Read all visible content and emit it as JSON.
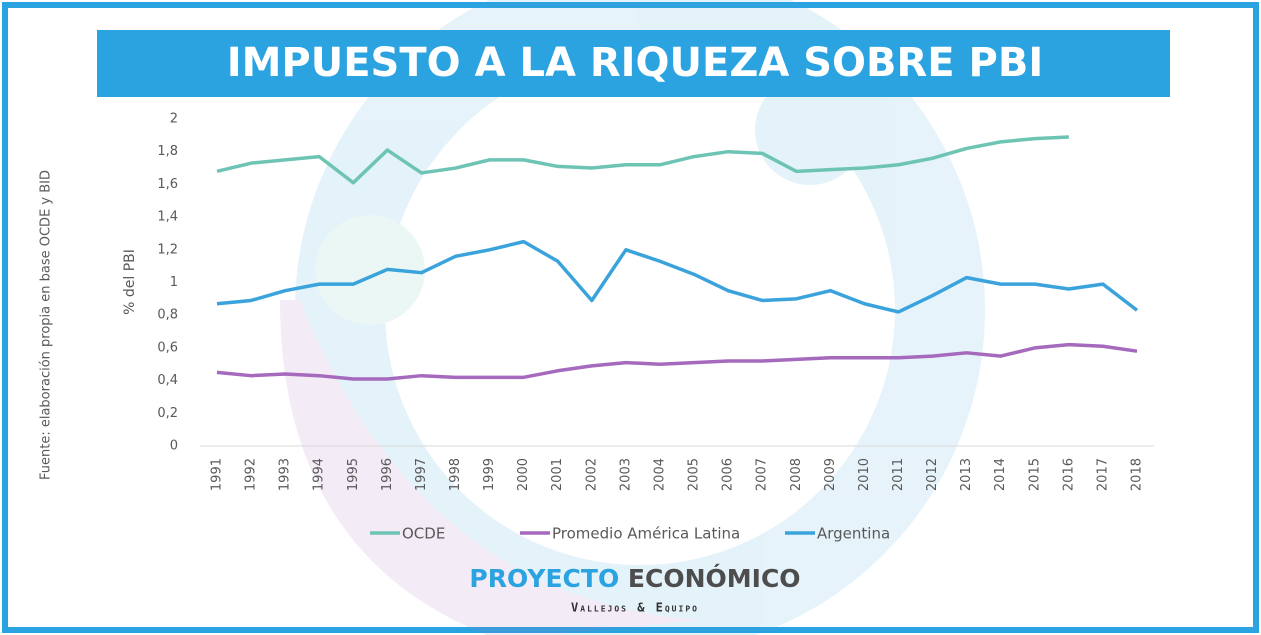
{
  "chart_data": {
    "type": "line",
    "title": "IMPUESTO A LA RIQUEZA SOBRE PBI",
    "y_label": "% del PBI",
    "source": "Fuente: elaboración propia en base  OCDE y BID",
    "categories": [
      "1991",
      "1992",
      "1993",
      "1994",
      "1995",
      "1996",
      "1997",
      "1998",
      "1999",
      "2000",
      "2001",
      "2002",
      "2003",
      "2004",
      "2005",
      "2006",
      "2007",
      "2008",
      "2009",
      "2010",
      "2011",
      "2012",
      "2013",
      "2014",
      "2015",
      "2016",
      "2017",
      "2018"
    ],
    "series": [
      {
        "name": "OCDE",
        "color": "#6ec4b4",
        "values": [
          1.68,
          1.73,
          1.75,
          1.77,
          1.61,
          1.81,
          1.67,
          1.7,
          1.75,
          1.75,
          1.71,
          1.7,
          1.72,
          1.72,
          1.77,
          1.8,
          1.79,
          1.68,
          1.69,
          1.7,
          1.72,
          1.76,
          1.82,
          1.86,
          1.88,
          1.89,
          null,
          null
        ]
      },
      {
        "name": "Promedio América Latina",
        "color": "#a569bd",
        "values": [
          0.45,
          0.43,
          0.44,
          0.43,
          0.41,
          0.41,
          0.43,
          0.42,
          0.42,
          0.42,
          0.46,
          0.49,
          0.51,
          0.5,
          0.51,
          0.52,
          0.52,
          0.53,
          0.54,
          0.54,
          0.54,
          0.55,
          0.57,
          0.55,
          0.6,
          0.62,
          0.61,
          0.58
        ]
      },
      {
        "name": "Argentina",
        "color": "#3aa3dc",
        "values": [
          0.87,
          0.89,
          0.95,
          0.99,
          0.99,
          1.08,
          1.06,
          1.16,
          1.2,
          1.25,
          1.13,
          0.89,
          1.2,
          1.13,
          1.05,
          0.95,
          0.89,
          0.9,
          0.95,
          0.87,
          0.82,
          0.92,
          1.03,
          0.99,
          0.99,
          0.96,
          0.99,
          0.83
        ]
      }
    ],
    "ylim": [
      0,
      2
    ],
    "yticks": [
      0,
      {
        "value": 0.2,
        "label": "0,2"
      },
      {
        "value": 0.4,
        "label": "0,4"
      },
      {
        "value": 0.6,
        "label": "0,6"
      },
      {
        "value": 0.8,
        "label": "0,8"
      },
      1,
      {
        "value": 1.2,
        "label": "1,2"
      },
      {
        "value": 1.4,
        "label": "1,4"
      },
      {
        "value": 1.6,
        "label": "1,6"
      },
      {
        "value": 1.8,
        "label": "1,8"
      },
      2
    ],
    "legend": "bottom",
    "logo": {
      "word1": "PROYECTO",
      "word2": "ECONÓMICO",
      "tagline": "Vallejos & Equipo"
    }
  }
}
